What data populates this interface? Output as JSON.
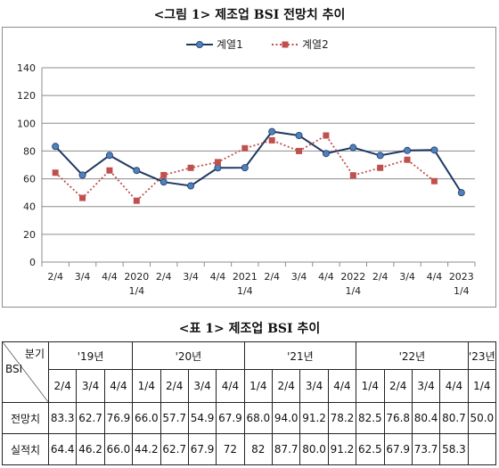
{
  "figure_title": "<그림 1> 제조업 BSI 전망치 추이",
  "table_title": "<표 1> 제조업 BSI 추이",
  "chart_data": {
    "type": "line",
    "title": "",
    "xlabel": "",
    "ylabel": "",
    "ylim": [
      0,
      140
    ],
    "y_ticks": [
      "0",
      "20",
      "40",
      "60",
      "80",
      "100",
      "120",
      "140"
    ],
    "grid": true,
    "legend_position": "top-center",
    "categories": [
      [
        "2/4"
      ],
      [
        "3/4"
      ],
      [
        "4/4"
      ],
      [
        "2020",
        "1/4"
      ],
      [
        "2/4"
      ],
      [
        "3/4"
      ],
      [
        "4/4"
      ],
      [
        "2021",
        "1/4"
      ],
      [
        "2/4"
      ],
      [
        "3/4"
      ],
      [
        "4/4"
      ],
      [
        "2022",
        "1/4"
      ],
      [
        "2/4"
      ],
      [
        "3/4"
      ],
      [
        "4/4"
      ],
      [
        "2023",
        "1/4"
      ]
    ],
    "series": [
      {
        "name": "계열1",
        "color": "#1f3864",
        "marker_color": "#4f81bd",
        "marker": "circle",
        "line_style": "solid",
        "values": [
          83.3,
          62.7,
          76.9,
          66.0,
          57.7,
          54.9,
          67.9,
          68.0,
          94.0,
          91.2,
          78.2,
          82.5,
          76.8,
          80.4,
          80.7,
          50.0
        ]
      },
      {
        "name": "계열2",
        "color": "#c0504d",
        "marker_color": "#c0504d",
        "marker": "square",
        "line_style": "dotted",
        "values": [
          64.4,
          46.2,
          66.0,
          44.2,
          62.7,
          67.9,
          72,
          82,
          87.7,
          80.0,
          91.2,
          62.5,
          67.9,
          73.7,
          58.3,
          null
        ]
      }
    ]
  },
  "table": {
    "corner_top": "분기",
    "corner_bottom": "BSI",
    "years": [
      {
        "label": "'19년",
        "span": 3
      },
      {
        "label": "'20년",
        "span": 4
      },
      {
        "label": "'21년",
        "span": 4
      },
      {
        "label": "'22년",
        "span": 4
      },
      {
        "label": "'23년",
        "span": 1
      }
    ],
    "quarters": [
      "2/4",
      "3/4",
      "4/4",
      "1/4",
      "2/4",
      "3/4",
      "4/4",
      "1/4",
      "2/4",
      "3/4",
      "4/4",
      "1/4",
      "2/4",
      "3/4",
      "4/4",
      "1/4"
    ],
    "rows": [
      {
        "label": "전망치",
        "values": [
          "83.3",
          "62.7",
          "76.9",
          "66.0",
          "57.7",
          "54.9",
          "67.9",
          "68.0",
          "94.0",
          "91.2",
          "78.2",
          "82.5",
          "76.8",
          "80.4",
          "80.7",
          "50.0"
        ]
      },
      {
        "label": "실적치",
        "values": [
          "64.4",
          "46.2",
          "66.0",
          "44.2",
          "62.7",
          "67.9",
          "72",
          "82",
          "87.7",
          "80.0",
          "91.2",
          "62.5",
          "67.9",
          "73.7",
          "58.3",
          ""
        ]
      }
    ]
  }
}
